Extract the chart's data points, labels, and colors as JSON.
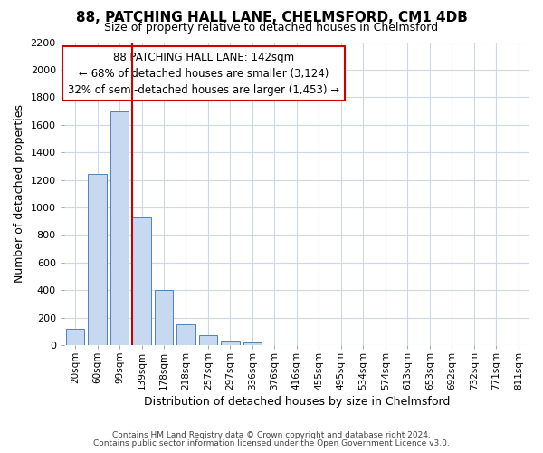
{
  "title1": "88, PATCHING HALL LANE, CHELMSFORD, CM1 4DB",
  "title2": "Size of property relative to detached houses in Chelmsford",
  "xlabel": "Distribution of detached houses by size in Chelmsford",
  "ylabel": "Number of detached properties",
  "bar_labels": [
    "20sqm",
    "60sqm",
    "99sqm",
    "139sqm",
    "178sqm",
    "218sqm",
    "257sqm",
    "297sqm",
    "336sqm",
    "376sqm",
    "416sqm",
    "455sqm",
    "495sqm",
    "534sqm",
    "574sqm",
    "613sqm",
    "653sqm",
    "692sqm",
    "732sqm",
    "771sqm",
    "811sqm"
  ],
  "bar_values": [
    120,
    1245,
    1700,
    930,
    400,
    150,
    70,
    35,
    20,
    0,
    0,
    0,
    0,
    0,
    0,
    0,
    0,
    0,
    0,
    0,
    0
  ],
  "bar_color": "#c6d9f0",
  "bar_edge_color": "#4f81bd",
  "vline_color": "#cc0000",
  "ylim": [
    0,
    2200
  ],
  "yticks": [
    0,
    200,
    400,
    600,
    800,
    1000,
    1200,
    1400,
    1600,
    1800,
    2000,
    2200
  ],
  "annotation_line1": "88 PATCHING HALL LANE: 142sqm",
  "annotation_line2": "← 68% of detached houses are smaller (3,124)",
  "annotation_line3": "32% of semi-detached houses are larger (1,453) →",
  "annotation_box_color": "#ffffff",
  "annotation_box_edge": "#cc0000",
  "footer1": "Contains HM Land Registry data © Crown copyright and database right 2024.",
  "footer2": "Contains public sector information licensed under the Open Government Licence v3.0.",
  "bg_color": "#ffffff",
  "grid_color": "#cdd8e8"
}
